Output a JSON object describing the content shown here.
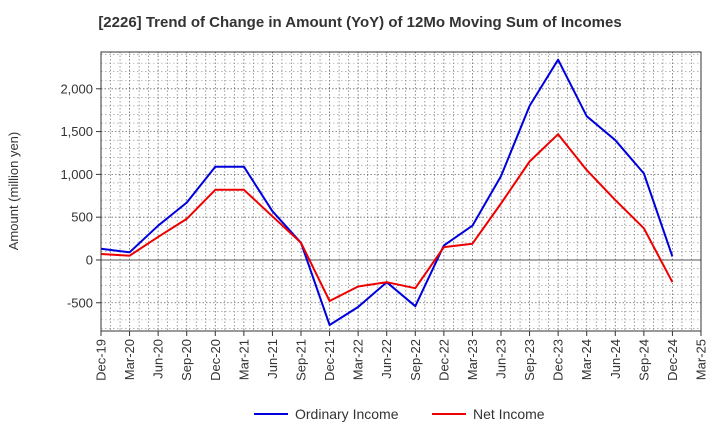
{
  "chart_data": {
    "type": "line",
    "title": "[2226]  Trend of Change in Amount (YoY) of 12Mo Moving Sum of Incomes",
    "xlabel": "",
    "ylabel": "Amount (million yen)",
    "categories": [
      "Dec-19",
      "Mar-20",
      "Jun-20",
      "Sep-20",
      "Dec-20",
      "Mar-21",
      "Jun-21",
      "Sep-21",
      "Dec-21",
      "Mar-22",
      "Jun-22",
      "Sep-22",
      "Dec-22",
      "Mar-23",
      "Jun-23",
      "Sep-23",
      "Dec-23",
      "Mar-24",
      "Jun-24",
      "Sep-24",
      "Dec-24",
      "Mar-25"
    ],
    "ylim": [
      -830,
      2430
    ],
    "yticks": [
      -500,
      0,
      500,
      1000,
      1500,
      2000
    ],
    "ytick_labels": [
      "-500",
      "0",
      "500",
      "1,000",
      "1,500",
      "2,000"
    ],
    "grid": true,
    "legend_position": "bottom",
    "series": [
      {
        "name": "Ordinary Income",
        "color": "#0000dd",
        "values": [
          130,
          90,
          400,
          670,
          1090,
          1090,
          570,
          200,
          -760,
          -550,
          -260,
          -540,
          170,
          400,
          980,
          1800,
          2340,
          1680,
          1400,
          1010,
          40,
          null
        ]
      },
      {
        "name": "Net Income",
        "color": "#ee0000",
        "values": [
          70,
          50,
          270,
          480,
          820,
          820,
          510,
          200,
          -480,
          -310,
          -260,
          -330,
          150,
          190,
          660,
          1150,
          1470,
          1050,
          700,
          370,
          -260,
          null
        ]
      }
    ]
  }
}
